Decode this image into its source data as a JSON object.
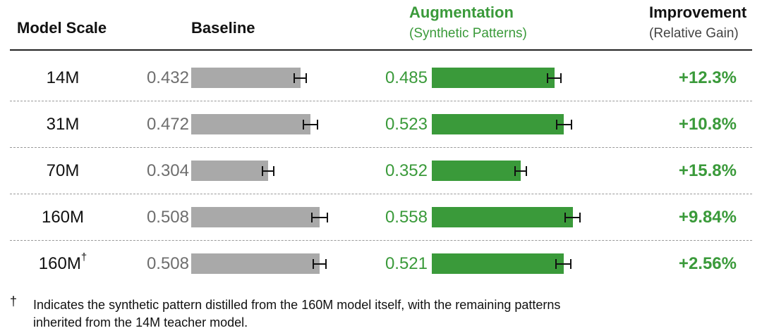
{
  "headers": {
    "scale": "Model Scale",
    "baseline": "Baseline",
    "augmentation": "Augmentation",
    "augmentation_sub": "(Synthetic Patterns)",
    "improvement": "Improvement",
    "improvement_sub": "(Relative Gain)"
  },
  "colors": {
    "baseline": "#a9a9a9",
    "augmentation": "#3a9a3a",
    "text": "#111111"
  },
  "chart_data": {
    "type": "bar",
    "categories": [
      "14M",
      "31M",
      "70M",
      "160M",
      "160M"
    ],
    "category_marks": [
      "",
      "",
      "",
      "",
      "†"
    ],
    "series": [
      {
        "name": "Baseline",
        "values": [
          0.432,
          0.472,
          0.304,
          0.508,
          0.508
        ],
        "labels": [
          "0.432",
          "0.472",
          "0.304",
          "0.508",
          "0.508"
        ],
        "error": [
          0.052,
          0.063,
          0.052,
          0.067,
          0.057
        ]
      },
      {
        "name": "Augmentation",
        "values": [
          0.485,
          0.523,
          0.352,
          0.558,
          0.521
        ],
        "labels": [
          "0.485",
          "0.523",
          "0.352",
          "0.558",
          "0.521"
        ],
        "error": [
          0.057,
          0.063,
          0.052,
          0.063,
          0.063
        ]
      }
    ],
    "improvement": [
      "+12.3%",
      "+10.8%",
      "+15.8%",
      "+9.84%",
      "+2.56%"
    ],
    "xlim": [
      0,
      0.65
    ],
    "grid": false
  },
  "footnote": {
    "mark": "†",
    "line1": "Indicates the synthetic pattern distilled from the 160M model itself, with the remaining patterns",
    "line2": "inherited from the 14M teacher model."
  }
}
